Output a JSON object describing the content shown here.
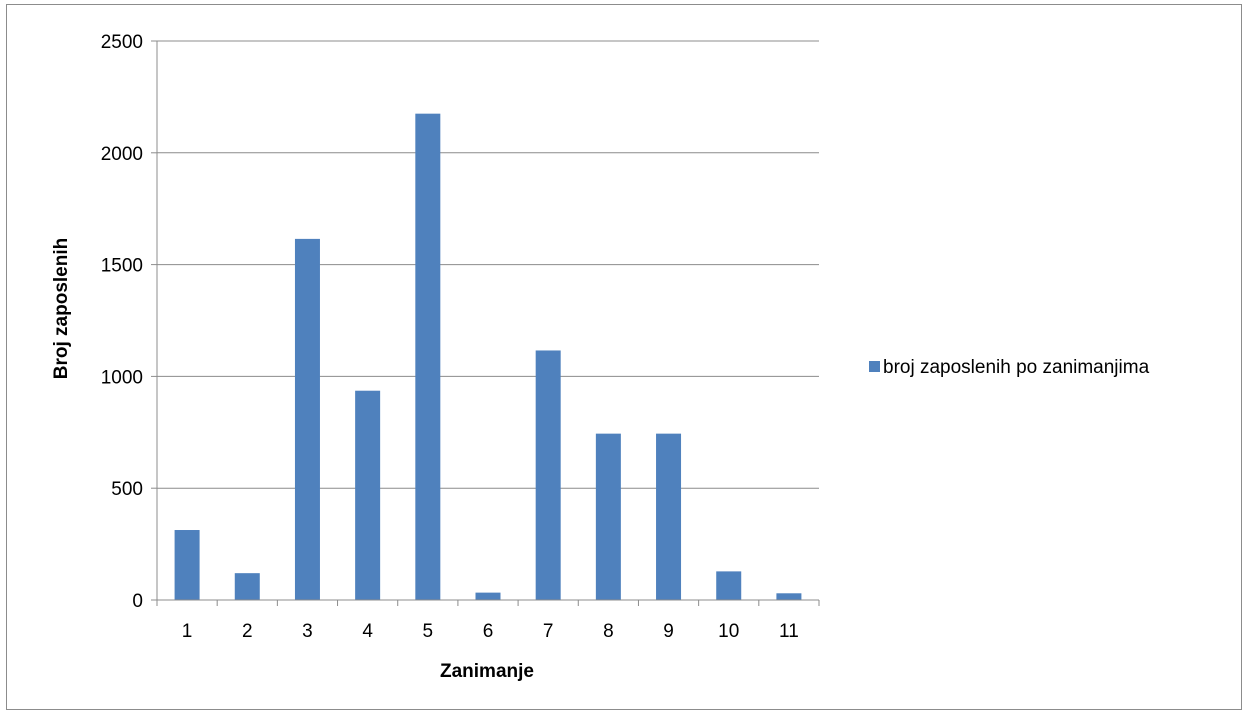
{
  "chart_data": {
    "type": "bar",
    "categories": [
      "1",
      "2",
      "3",
      "4",
      "5",
      "6",
      "7",
      "8",
      "9",
      "10",
      "11"
    ],
    "series": [
      {
        "name": "broj zaposlenih po zanimanjima",
        "color": "#4f81bd",
        "values": [
          313,
          120,
          1615,
          936,
          2175,
          33,
          1116,
          744,
          744,
          128,
          30
        ]
      }
    ],
    "xlabel": "Zanimanje",
    "ylabel": "Broj zaposlenih",
    "ylim": [
      0,
      2500
    ],
    "yticks": [
      "0",
      "500",
      "1000",
      "1500",
      "2000",
      "2500"
    ],
    "grid": true,
    "legend_position": "right"
  }
}
